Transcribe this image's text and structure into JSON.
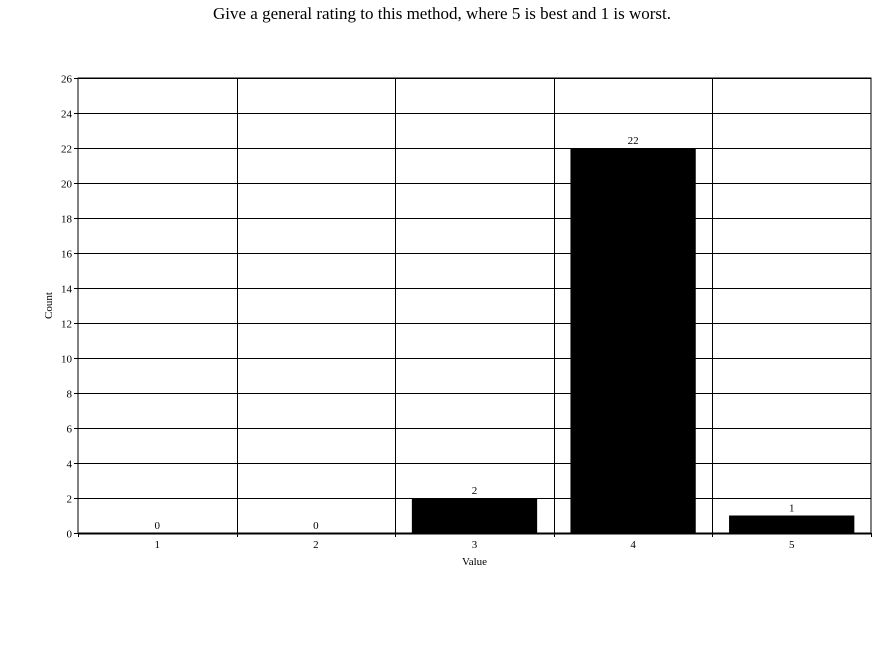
{
  "chart_data": {
    "type": "bar",
    "title": "Give a general rating to this method, where 5 is best and 1 is worst.",
    "xlabel": "Value",
    "ylabel": "Count",
    "categories": [
      "1",
      "2",
      "3",
      "4",
      "5"
    ],
    "values": [
      0,
      0,
      2,
      22,
      1
    ],
    "ylim": [
      0,
      26
    ],
    "yticks": [
      0,
      2,
      4,
      6,
      8,
      10,
      12,
      14,
      16,
      18,
      20,
      22,
      24,
      26
    ],
    "grid": true,
    "data_labels": true,
    "bar_color": "#000000",
    "legend": "none"
  }
}
